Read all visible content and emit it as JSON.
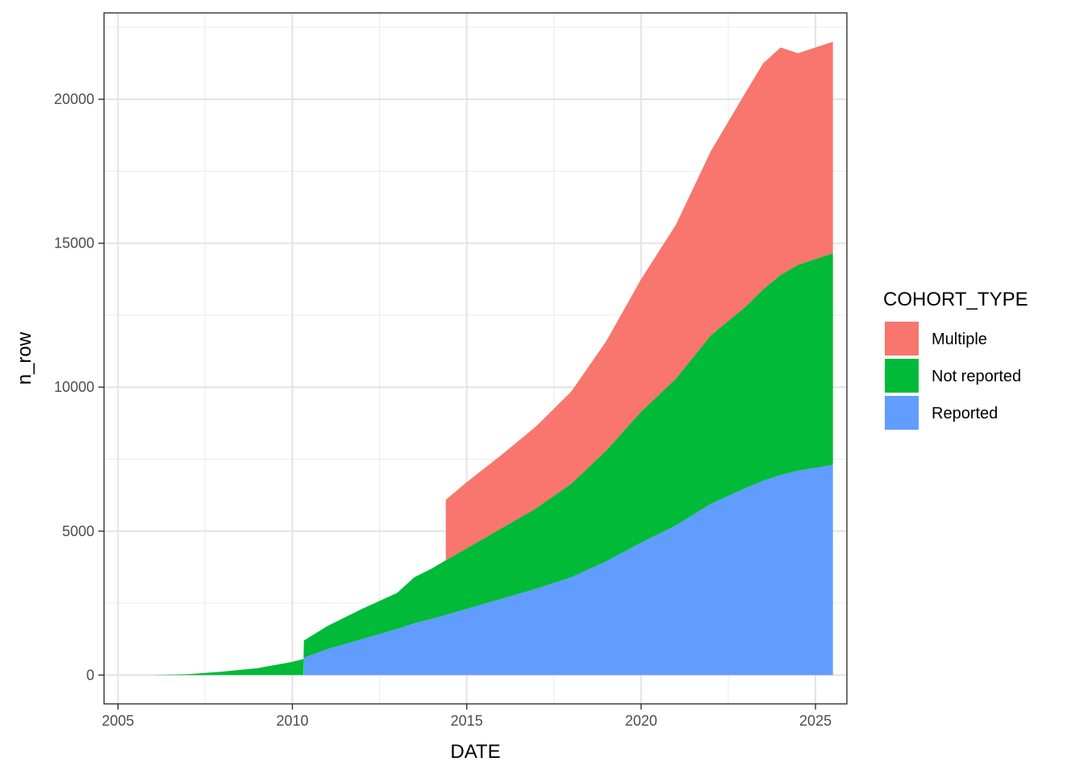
{
  "chart_data": {
    "type": "area",
    "stacked": true,
    "title": "",
    "xlabel": "DATE",
    "ylabel": "n_row",
    "xlim": [
      2004.6,
      2025.9
    ],
    "ylim": [
      -1000,
      23000
    ],
    "x_ticks": [
      2005,
      2010,
      2015,
      2020,
      2025
    ],
    "x_tick_labels": [
      "2005",
      "2010",
      "2015",
      "2020",
      "2025"
    ],
    "y_ticks": [
      0,
      5000,
      10000,
      15000,
      20000
    ],
    "y_tick_labels": [
      "0",
      "5000",
      "10000",
      "15000",
      "20000"
    ],
    "grid": true,
    "legend": {
      "title": "COHORT_TYPE",
      "position": "right"
    },
    "series": [
      {
        "name": "Reported",
        "color": "#619CFF",
        "x": [
          2010.33,
          2011,
          2012,
          2013,
          2013.5,
          2014,
          2015,
          2016,
          2017,
          2018,
          2019,
          2020,
          2021,
          2022,
          2023,
          2023.5,
          2024,
          2024.5,
          2025,
          2025.5
        ],
        "y": [
          600,
          900,
          1250,
          1600,
          1800,
          1950,
          2300,
          2650,
          3000,
          3400,
          3950,
          4600,
          5200,
          5950,
          6500,
          6750,
          6950,
          7100,
          7200,
          7300
        ]
      },
      {
        "name": "Not reported",
        "color": "#00BA38",
        "x": [
          2006,
          2007,
          2008,
          2009,
          2010,
          2010.32,
          2010.33,
          2011,
          2012,
          2013,
          2013.5,
          2014,
          2014.4,
          2015,
          2016,
          2017,
          2018,
          2019,
          2020,
          2021,
          2022,
          2023,
          2023.5,
          2024,
          2024.5,
          2025,
          2025.5
        ],
        "y": [
          0,
          30,
          120,
          240,
          460,
          560,
          600,
          800,
          1050,
          1250,
          1600,
          1750,
          1900,
          2100,
          2450,
          2800,
          3250,
          3850,
          4550,
          5100,
          5850,
          6300,
          6650,
          6950,
          7150,
          7250,
          7350
        ]
      },
      {
        "name": "Multiple",
        "color": "#F8766D",
        "x": [
          2014.4,
          2015,
          2016,
          2017,
          2018,
          2019,
          2020,
          2021,
          2022,
          2023,
          2023.5,
          2024,
          2024.5,
          2025,
          2025.5
        ],
        "y": [
          2100,
          2300,
          2550,
          2850,
          3200,
          3800,
          4600,
          5350,
          6400,
          7450,
          7850,
          7900,
          7350,
          7350,
          7350
        ]
      }
    ]
  }
}
